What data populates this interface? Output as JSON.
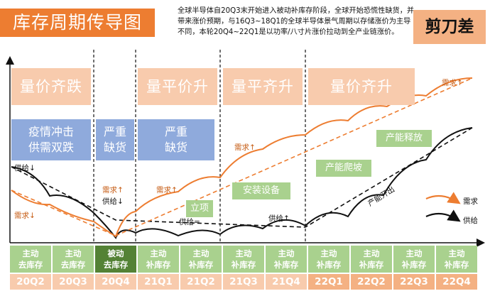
{
  "title": "库存周期传导图",
  "intro": "全球半导体自20Q3末开始进入被动补库存阶段，全球开始恐慌性缺货，并带来涨价预期，与16Q3~18Q1的全球半导体景气周期以存储涨价为主导不同，本轮20Q4~22Q1是以功率/八寸片涨价拉动到全产业链涨价。",
  "badge": "剪刀差",
  "phases": [
    "量价齐跌",
    "量平价升",
    "量平齐升",
    "量价齐升"
  ],
  "blue_boxes": [
    {
      "line1": "疫情冲击",
      "line2": "供需双跌"
    },
    {
      "line1": "严重",
      "line2": "缺货"
    },
    {
      "line1": "严重",
      "line2": "缺货"
    }
  ],
  "green_boxes": [
    "安装设备",
    "立项",
    "产能爬坡",
    "产能释放"
  ],
  "curve_labels": {
    "supply_down_1": "供给↓",
    "demand_down": "需求↓",
    "demand_up_1": "需求↑",
    "supply_down_2": "供给↓",
    "demand_up_2": "需求↑",
    "supply_flat": "供给=",
    "demand_up_3": "需求↑",
    "supply_up": "供给↑",
    "capacity_out": "产能开出",
    "demand_up_4": "需求↑"
  },
  "legend": {
    "demand": "需求",
    "supply": "供给"
  },
  "colors": {
    "demand": "#ED7D31",
    "supply": "#111111",
    "accent": "#ED7D31"
  },
  "states": [
    {
      "line1": "主动",
      "line2": "去库存",
      "style": "light"
    },
    {
      "line1": "主动",
      "line2": "去库存",
      "style": "light"
    },
    {
      "line1": "被动",
      "line2": "去库存",
      "style": "dark"
    },
    {
      "line1": "主动",
      "line2": "补库存",
      "style": "light"
    },
    {
      "line1": "主动",
      "line2": "补库存",
      "style": "light"
    },
    {
      "line1": "主动",
      "line2": "补库存",
      "style": "light"
    },
    {
      "line1": "主动",
      "line2": "补库存",
      "style": "light"
    },
    {
      "line1": "主动",
      "line2": "补库存",
      "style": "light"
    },
    {
      "line1": "主动",
      "line2": "补库存",
      "style": "light"
    },
    {
      "line1": "主动",
      "line2": "补库存",
      "style": "light"
    },
    {
      "line1": "主动",
      "line2": "补库存",
      "style": "light"
    }
  ],
  "quarters": [
    "20Q2",
    "20Q3",
    "20Q4",
    "21Q1",
    "21Q2",
    "21Q3",
    "21Q4",
    "22Q1",
    "22Q2",
    "22Q3",
    "22Q4"
  ]
}
